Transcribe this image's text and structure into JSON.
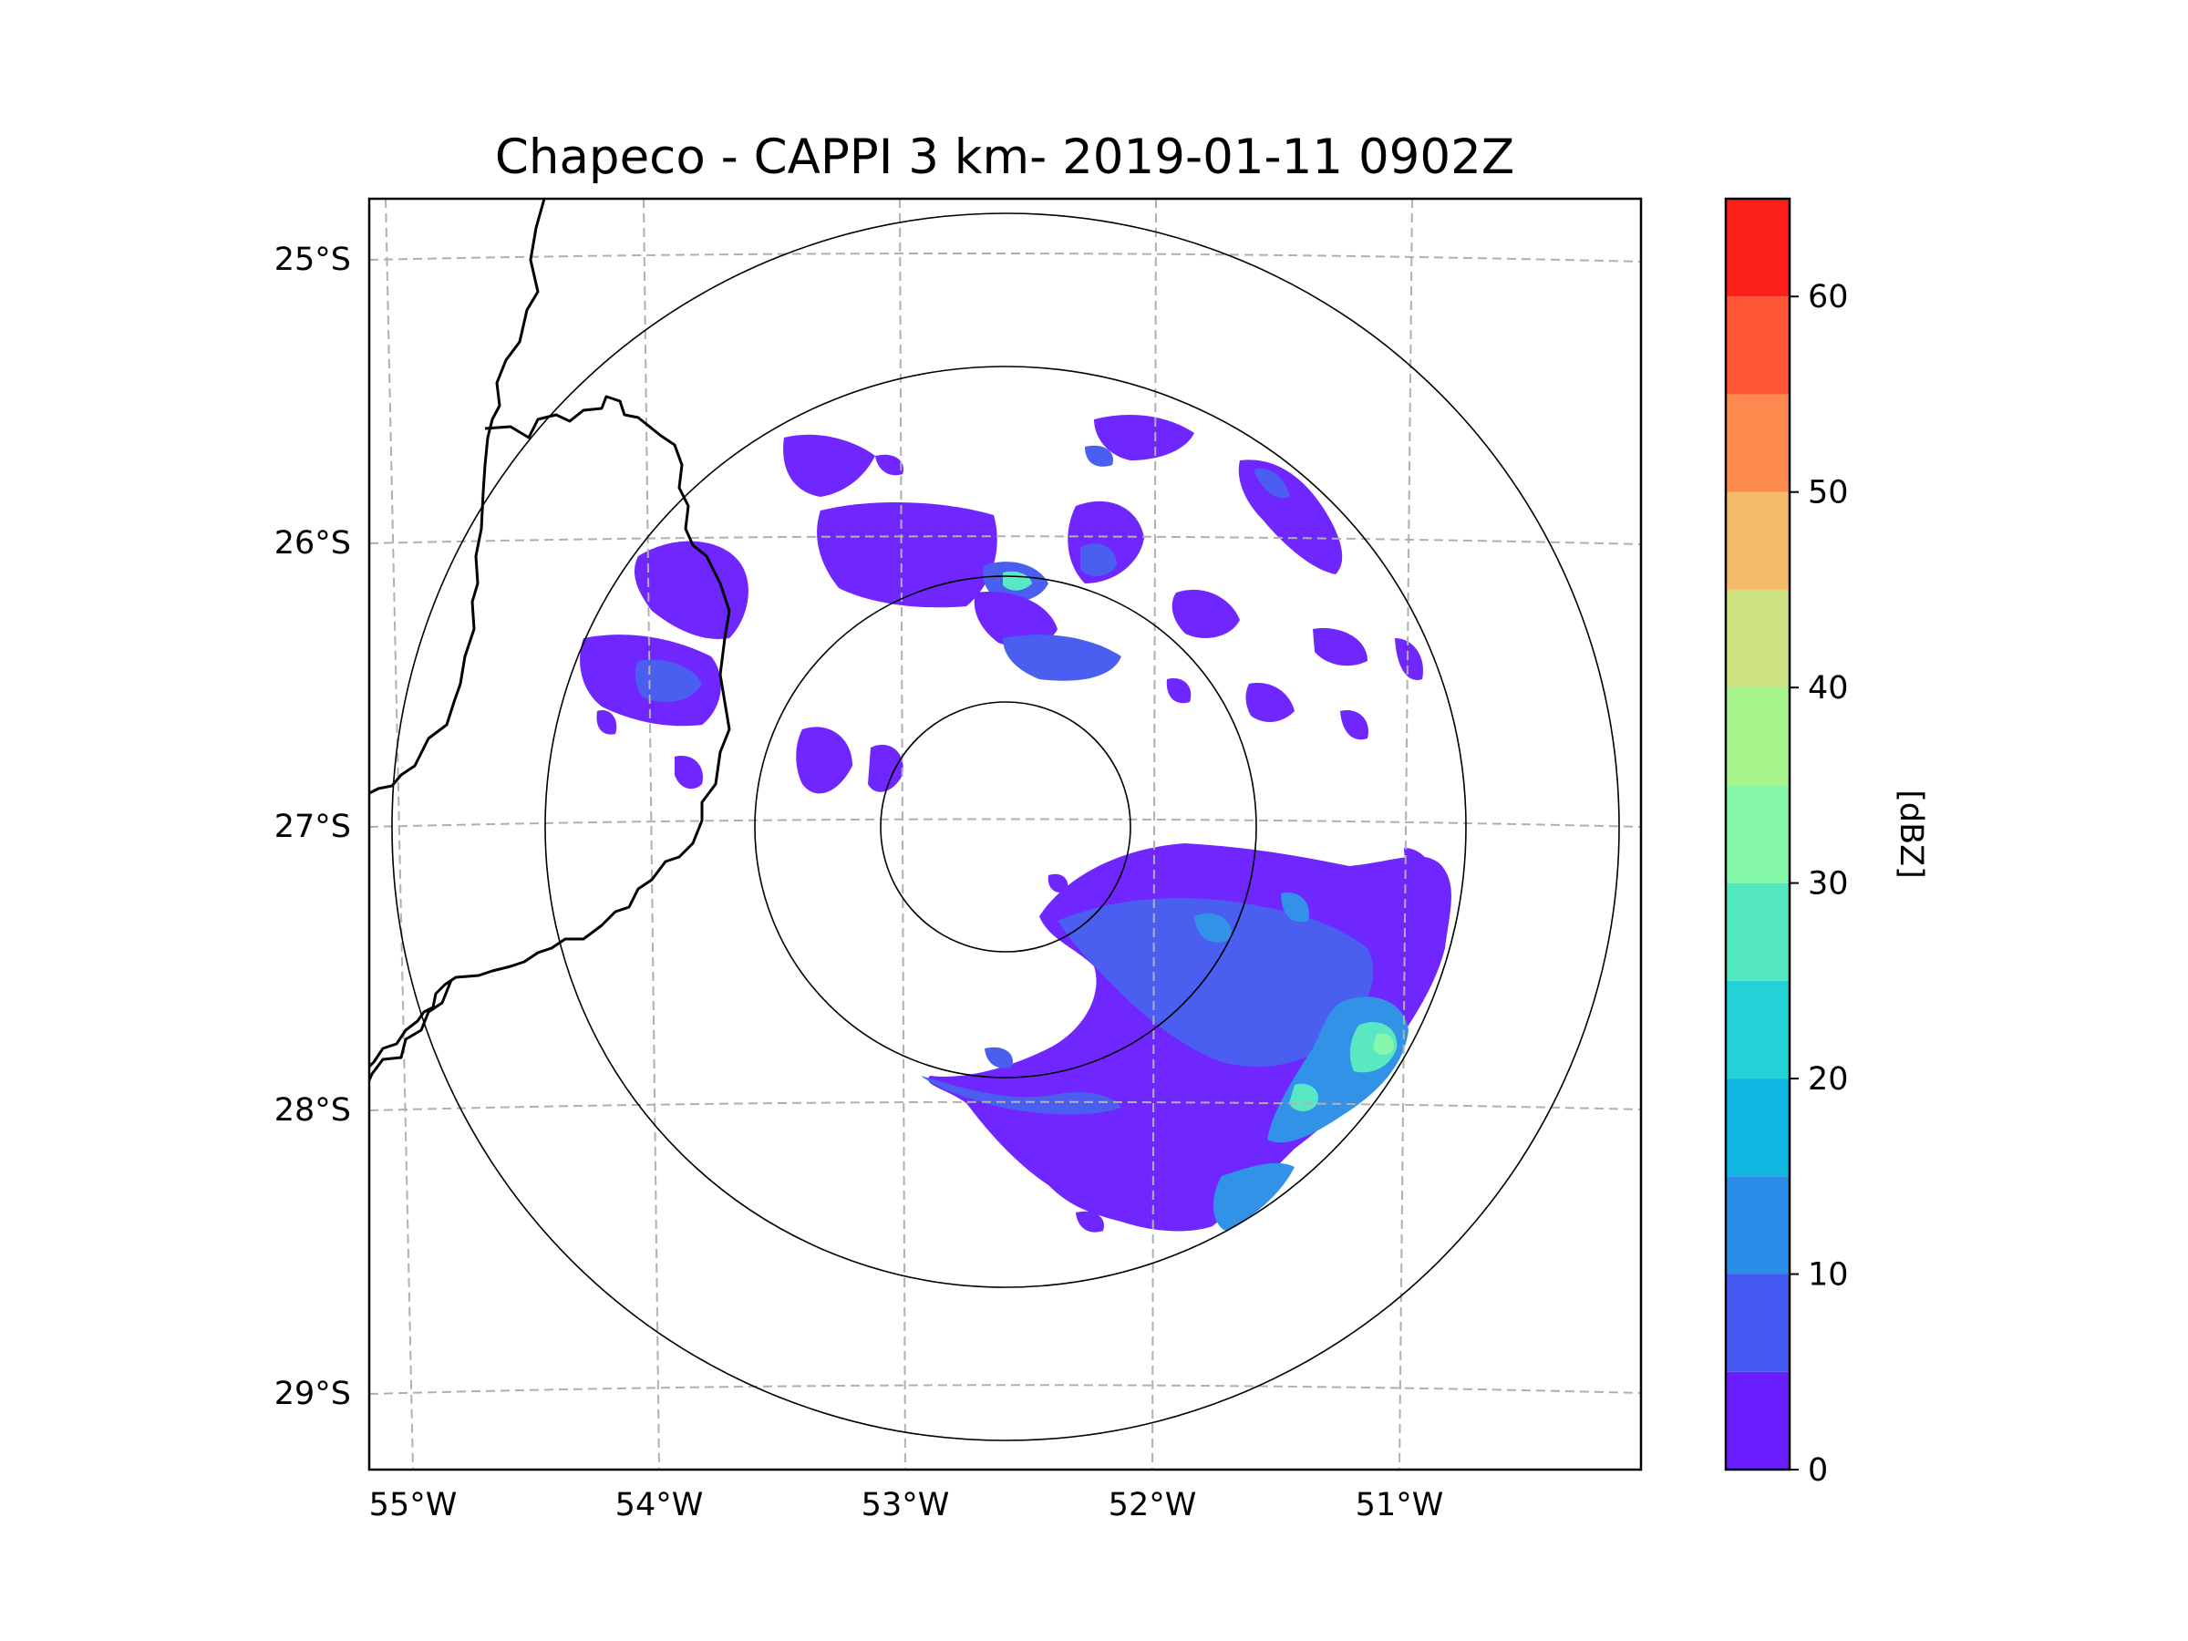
{
  "title": "Chapeco - CAPPI 3 km- 2019-01-11 0902Z",
  "map": {
    "lon_labels": [
      "55°W",
      "54°W",
      "53°W",
      "52°W",
      "51°W"
    ],
    "lat_labels": [
      "25°S",
      "26°S",
      "27°S",
      "28°S",
      "29°S"
    ],
    "range_rings": 4,
    "gridline_style": "dashed gray"
  },
  "colorbar": {
    "label": "[dBZ]",
    "tick_labels": [
      "0",
      "10",
      "20",
      "30",
      "40",
      "50",
      "60"
    ],
    "range": [
      0,
      65
    ],
    "step": 5,
    "colors": [
      "#6b1eff",
      "#4358f0",
      "#2a8ee8",
      "#10b6e2",
      "#23d1d6",
      "#54e8c0",
      "#84f7a8",
      "#a6f58c",
      "#cde382",
      "#f3bb6a",
      "#fe8a4f",
      "#fe5535",
      "#fd1f1a"
    ]
  },
  "colors": {
    "echo_weak": "#6b1eff",
    "echo_light": "#4358f0",
    "echo_moderate": "#2a8ee8",
    "echo_strong": "#54e8c0",
    "echo_peak": "#84f7a8",
    "border": "#000000",
    "grid": "#b0b0b0"
  }
}
